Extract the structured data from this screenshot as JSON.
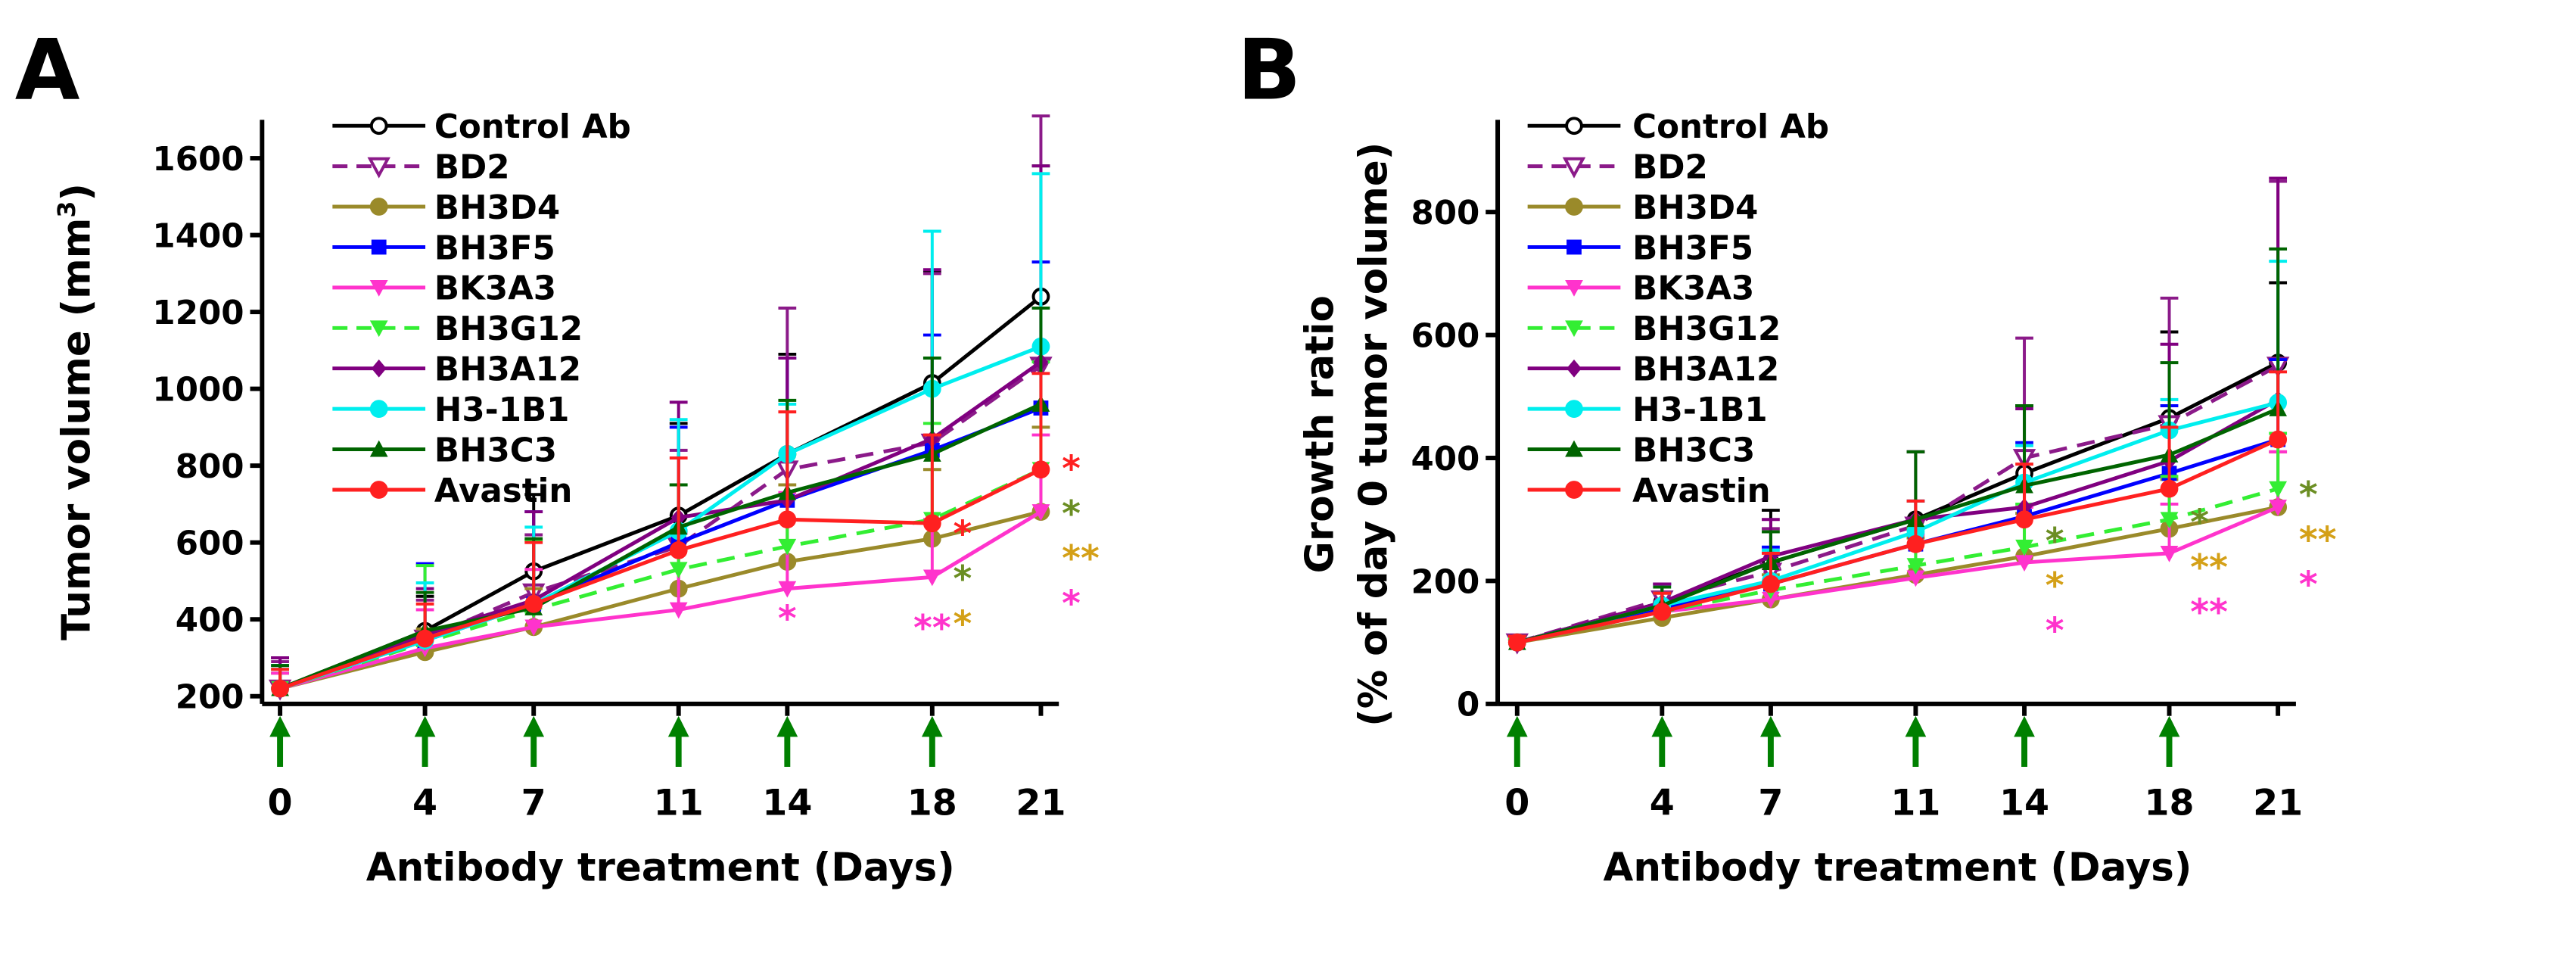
{
  "series_style": [
    {
      "name": "Control Ab",
      "color": "#000000",
      "marker": "circle-open",
      "dash": false
    },
    {
      "name": "BD2",
      "color": "#8B1A89",
      "marker": "tri-down-open",
      "dash": true
    },
    {
      "name": "BH3D4",
      "color": "#9A8A2A",
      "marker": "circle",
      "dash": false
    },
    {
      "name": "BH3F5",
      "color": "#0000FF",
      "marker": "square",
      "dash": false
    },
    {
      "name": "BK3A3",
      "color": "#FF33CC",
      "marker": "tri-down",
      "dash": false
    },
    {
      "name": "BH3G12",
      "color": "#33EE33",
      "marker": "tri-down",
      "dash": true
    },
    {
      "name": "BH3A12",
      "color": "#800080",
      "marker": "diamond",
      "dash": false
    },
    {
      "name": "H3-1B1",
      "color": "#00EEEE",
      "marker": "circle",
      "dash": false
    },
    {
      "name": "BH3C3",
      "color": "#006400",
      "marker": "tri-up",
      "dash": false
    },
    {
      "name": "Avastin",
      "color": "#FF2020",
      "marker": "circle",
      "dash": false
    }
  ],
  "arrow_color": "#008000",
  "chart_data": [
    {
      "panel_label": "A",
      "type": "line",
      "xlabel": "Antibody treatment (Days)",
      "ylabel": "Tumor volume (mm",
      "ylabel_sup": "3",
      "ylabel_end": ")",
      "x": [
        0,
        4,
        7,
        11,
        14,
        18,
        21
      ],
      "xticks": [
        "0",
        "4",
        "7",
        "11",
        "14",
        "18",
        "21"
      ],
      "ylim": [
        180,
        1700
      ],
      "yticks": [
        200,
        400,
        600,
        800,
        1000,
        1200,
        1400,
        1600
      ],
      "treatment_days": [
        0,
        4,
        7,
        11,
        14,
        18
      ],
      "series": [
        {
          "name": "Control Ab",
          "values": [
            220,
            370,
            525,
            670,
            830,
            1015,
            1240
          ],
          "err": [
            80,
            90,
            200,
            240,
            260,
            290,
            340
          ]
        },
        {
          "name": "BD2",
          "values": [
            220,
            350,
            470,
            590,
            790,
            860,
            1060
          ],
          "err": [
            70,
            100,
            150,
            250,
            420,
            440,
            650
          ]
        },
        {
          "name": "BH3D4",
          "values": [
            220,
            315,
            380,
            480,
            550,
            610,
            680
          ],
          "err": [
            40,
            60,
            100,
            150,
            200,
            180,
            220
          ]
        },
        {
          "name": "BH3F5",
          "values": [
            220,
            345,
            440,
            600,
            710,
            840,
            950
          ],
          "err": [
            60,
            200,
            240,
            300,
            370,
            300,
            380
          ]
        },
        {
          "name": "BK3A3",
          "values": [
            220,
            325,
            380,
            425,
            480,
            510,
            680
          ],
          "err": [
            40,
            100,
            150,
            200,
            250,
            150,
            200
          ]
        },
        {
          "name": "BH3G12",
          "values": [
            220,
            340,
            425,
            530,
            590,
            660,
            790
          ],
          "err": [
            50,
            200,
            180,
            220,
            240,
            250,
            280
          ]
        },
        {
          "name": "BH3A12",
          "values": [
            220,
            360,
            450,
            665,
            710,
            870,
            1070
          ],
          "err": [
            80,
            120,
            230,
            300,
            370,
            440,
            510
          ]
        },
        {
          "name": "H3-1B1",
          "values": [
            220,
            345,
            440,
            630,
            830,
            1000,
            1110
          ],
          "err": [
            60,
            150,
            200,
            290,
            130,
            410,
            450
          ]
        },
        {
          "name": "BH3C3",
          "values": [
            220,
            370,
            430,
            640,
            730,
            830,
            960
          ],
          "err": [
            60,
            100,
            180,
            110,
            240,
            250,
            250
          ]
        },
        {
          "name": "Avastin",
          "values": [
            220,
            350,
            440,
            580,
            660,
            650,
            790
          ],
          "err": [
            50,
            90,
            160,
            240,
            280,
            230,
            250
          ]
        }
      ],
      "annotations": [
        {
          "day": 14,
          "value": 410,
          "text": "*",
          "color": "#FF33CC"
        },
        {
          "day": 18,
          "value": 385,
          "text": "**",
          "color": "#FF33CC"
        },
        {
          "day": 21,
          "value": 800,
          "text": "*",
          "color": "#FF2020",
          "side": "right"
        },
        {
          "day": 21,
          "value": 740,
          "text": "*",
          "color": "#6B8E23",
          "side": "right"
        },
        {
          "day": 21,
          "value": 680,
          "text": "**",
          "color": "#D4A017",
          "side": "right"
        },
        {
          "day": 21,
          "value": 620,
          "text": "*",
          "color": "#FF33CC",
          "side": "right"
        },
        {
          "day": 18,
          "value": 630,
          "text": "*",
          "color": "#FF2020",
          "side": "right"
        },
        {
          "day": 18,
          "value": 580,
          "text": "*",
          "color": "#6B8E23",
          "side": "right"
        },
        {
          "day": 18,
          "value": 530,
          "text": "*",
          "color": "#D4A017",
          "side": "right"
        }
      ]
    },
    {
      "panel_label": "B",
      "type": "line",
      "xlabel": "Antibody treatment (Days)",
      "ylabel": "Growth ratio",
      "ylabel2": "(% of day 0 tumor volume)",
      "x": [
        0,
        4,
        7,
        11,
        14,
        18,
        21
      ],
      "xticks": [
        "0",
        "4",
        "7",
        "11",
        "14",
        "18",
        "21"
      ],
      "ylim": [
        0,
        950
      ],
      "yticks": [
        0,
        200,
        400,
        600,
        800
      ],
      "treatment_days": [
        0,
        4,
        7,
        11,
        14,
        18
      ],
      "series": [
        {
          "name": "Control Ab",
          "values": [
            100,
            165,
            230,
            300,
            375,
            465,
            555
          ],
          "err": [
            10,
            30,
            85,
            110,
            110,
            140,
            130
          ]
        },
        {
          "name": "BD2",
          "values": [
            100,
            170,
            215,
            290,
            400,
            455,
            550
          ],
          "err": [
            10,
            25,
            70,
            120,
            195,
            205,
            300
          ]
        },
        {
          "name": "BH3D4",
          "values": [
            100,
            140,
            170,
            210,
            240,
            285,
            320
          ],
          "err": [
            5,
            20,
            40,
            60,
            70,
            80,
            90
          ]
        },
        {
          "name": "BH3F5",
          "values": [
            100,
            155,
            195,
            260,
            305,
            375,
            430
          ],
          "err": [
            10,
            40,
            60,
            70,
            120,
            110,
            130
          ]
        },
        {
          "name": "BK3A3",
          "values": [
            100,
            150,
            170,
            205,
            230,
            245,
            320
          ],
          "err": [
            5,
            30,
            50,
            70,
            90,
            80,
            90
          ]
        },
        {
          "name": "BH3G12",
          "values": [
            100,
            150,
            185,
            225,
            255,
            300,
            350
          ],
          "err": [
            5,
            30,
            50,
            60,
            70,
            70,
            90
          ]
        },
        {
          "name": "BH3A12",
          "values": [
            100,
            165,
            240,
            300,
            320,
            395,
            495
          ],
          "err": [
            10,
            30,
            60,
            110,
            160,
            190,
            360
          ]
        },
        {
          "name": "H3-1B1",
          "values": [
            100,
            160,
            200,
            280,
            360,
            445,
            490
          ],
          "err": [
            10,
            30,
            50,
            50,
            60,
            50,
            230
          ]
        },
        {
          "name": "BH3C3",
          "values": [
            100,
            160,
            230,
            300,
            355,
            405,
            480
          ],
          "err": [
            10,
            30,
            50,
            110,
            130,
            150,
            260
          ]
        },
        {
          "name": "Avastin",
          "values": [
            100,
            150,
            195,
            260,
            300,
            350,
            430
          ],
          "err": [
            10,
            30,
            50,
            70,
            90,
            100,
            110
          ]
        }
      ],
      "annotations": [
        {
          "day": 14,
          "value": 270,
          "text": "*",
          "color": "#6B8E23",
          "side": "right"
        },
        {
          "day": 14,
          "value": 240,
          "text": "*",
          "color": "#D4A017",
          "side": "right"
        },
        {
          "day": 14,
          "value": 185,
          "text": "*",
          "color": "#FF33CC",
          "side": "right"
        },
        {
          "day": 18,
          "value": 300,
          "text": "*",
          "color": "#6B8E23",
          "side": "right"
        },
        {
          "day": 18,
          "value": 265,
          "text": "**",
          "color": "#D4A017",
          "side": "right"
        },
        {
          "day": 18,
          "value": 210,
          "text": "**",
          "color": "#FF33CC",
          "side": "right"
        },
        {
          "day": 21,
          "value": 345,
          "text": "*",
          "color": "#6B8E23",
          "side": "right"
        },
        {
          "day": 21,
          "value": 305,
          "text": "**",
          "color": "#D4A017",
          "side": "right"
        },
        {
          "day": 21,
          "value": 260,
          "text": "*",
          "color": "#FF33CC",
          "side": "right"
        }
      ]
    }
  ]
}
